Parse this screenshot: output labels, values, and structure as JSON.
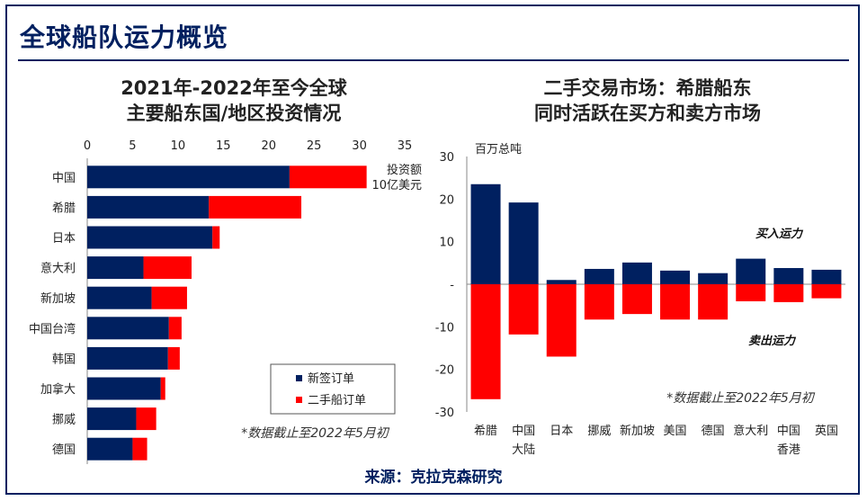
{
  "page": {
    "title": "全球船队运力概览",
    "source": "来源：克拉克森研究"
  },
  "colors": {
    "navy": "#002060",
    "red": "#FF0000",
    "axis": "#888888"
  },
  "chart_data": [
    {
      "type": "bar",
      "orientation": "horizontal",
      "stacked": true,
      "title_lines": [
        "2021年-2022年至今全球",
        "主要船东国/地区投资情况"
      ],
      "unit_label_lines": [
        "投资额",
        "10亿美元"
      ],
      "categories": [
        "中国",
        "希腊",
        "日本",
        "意大利",
        "新加坡",
        "中国台湾",
        "韩国",
        "加拿大",
        "挪威",
        "德国"
      ],
      "series": [
        {
          "name": "新签订单",
          "color": "#002060",
          "values": [
            22.3,
            13.4,
            13.8,
            6.2,
            7.1,
            9.0,
            8.9,
            8.1,
            5.4,
            5.0
          ]
        },
        {
          "name": "二手船订单",
          "color": "#FF0000",
          "values": [
            8.5,
            10.2,
            0.8,
            5.3,
            3.9,
            1.4,
            1.3,
            0.5,
            2.2,
            1.6
          ]
        }
      ],
      "xlim": [
        0,
        35
      ],
      "xticks": [
        0,
        5,
        10,
        15,
        20,
        25,
        30,
        35
      ],
      "axis_position": "top",
      "legend": "bottom-right",
      "note": "*数据截止至2022年5月初"
    },
    {
      "type": "bar",
      "orientation": "vertical",
      "title_lines": [
        "二手交易市场：希腊船东",
        "同时活跃在买方和卖方市场"
      ],
      "ylabel": "百万总吨",
      "categories": [
        [
          "希腊"
        ],
        [
          "中国",
          "大陆"
        ],
        [
          "日本"
        ],
        [
          "挪威"
        ],
        [
          "新加坡"
        ],
        [
          "美国"
        ],
        [
          "德国"
        ],
        [
          "意大利"
        ],
        [
          "中国",
          "香港"
        ],
        [
          "英国"
        ]
      ],
      "series": [
        {
          "name": "买入运力",
          "color": "#002060",
          "values": [
            23.5,
            19.2,
            1.0,
            3.6,
            5.1,
            3.2,
            2.6,
            6.0,
            3.8,
            3.4
          ]
        },
        {
          "name": "卖出运力",
          "color": "#FF0000",
          "values": [
            -27.0,
            -11.8,
            -17.0,
            -8.3,
            -7.0,
            -8.3,
            -8.3,
            -4.0,
            -4.2,
            -3.3
          ]
        }
      ],
      "ylim": [
        -30,
        30
      ],
      "yticks": [
        30,
        20,
        10,
        0,
        -10,
        -20,
        -30
      ],
      "yticklabels": [
        "30",
        "20",
        "10",
        "-",
        "-10",
        "-20",
        "-30"
      ],
      "note": "*数据截止至2022年5月初"
    }
  ]
}
